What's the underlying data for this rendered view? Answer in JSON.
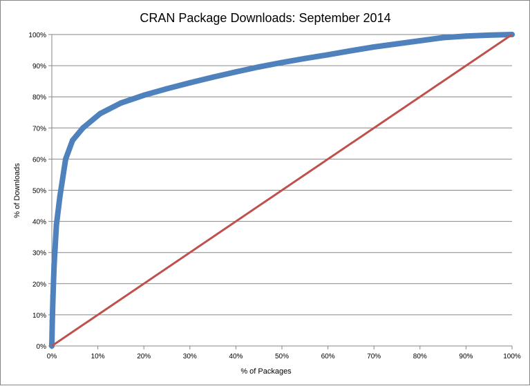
{
  "chart_data": {
    "type": "scatter",
    "title": "CRAN Package Downloads: September 2014",
    "xlabel": "% of Packages",
    "ylabel": "% of Downloads",
    "xlim": [
      0,
      100
    ],
    "ylim": [
      0,
      100
    ],
    "x_ticks": [
      "0%",
      "10%",
      "20%",
      "30%",
      "40%",
      "50%",
      "60%",
      "70%",
      "80%",
      "90%",
      "100%"
    ],
    "y_ticks": [
      "0%",
      "10%",
      "20%",
      "30%",
      "40%",
      "50%",
      "60%",
      "70%",
      "80%",
      "90%",
      "100%"
    ],
    "grid": "horizontal",
    "legend": "none",
    "series": [
      {
        "color": "#4F81BD",
        "x": [
          0,
          0.1,
          0.25,
          0.5,
          1,
          1.75,
          3,
          4.5,
          6.75,
          10.5,
          15,
          20,
          25,
          30,
          35,
          40,
          45,
          50,
          55,
          60,
          65,
          70,
          75,
          80,
          85,
          90,
          95,
          100
        ],
        "y": [
          0,
          8,
          16,
          26,
          39,
          48,
          60,
          66,
          70,
          74.6,
          78,
          80.5,
          82.6,
          84.5,
          86.3,
          88,
          89.6,
          91,
          92.3,
          93.5,
          94.8,
          96,
          97,
          98,
          99,
          99.5,
          99.8,
          100
        ]
      },
      {
        "color": "#C0504D",
        "x": [
          0,
          100
        ],
        "y": [
          0,
          100
        ]
      }
    ]
  }
}
